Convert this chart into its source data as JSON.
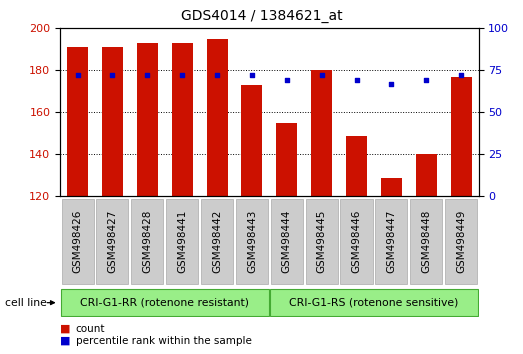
{
  "title": "GDS4014 / 1384621_at",
  "samples": [
    "GSM498426",
    "GSM498427",
    "GSM498428",
    "GSM498441",
    "GSM498442",
    "GSM498443",
    "GSM498444",
    "GSM498445",
    "GSM498446",
    "GSM498447",
    "GSM498448",
    "GSM498449"
  ],
  "count_values": [
    191,
    191,
    193,
    193,
    195,
    173,
    155,
    180,
    149,
    129,
    140,
    177
  ],
  "percentile_values": [
    72,
    72,
    72,
    72,
    72,
    72,
    69,
    72,
    69,
    67,
    69,
    72
  ],
  "ylim_left": [
    120,
    200
  ],
  "ylim_right": [
    0,
    100
  ],
  "yticks_left": [
    120,
    140,
    160,
    180,
    200
  ],
  "yticks_right": [
    0,
    25,
    50,
    75,
    100
  ],
  "bar_color": "#cc1100",
  "dot_color": "#0000cc",
  "bar_bottom": 120,
  "group1_label": "CRI-G1-RR (rotenone resistant)",
  "group2_label": "CRI-G1-RS (rotenone sensitive)",
  "cell_line_label": "cell line",
  "legend_count": "count",
  "legend_percentile": "percentile rank within the sample",
  "group_bg_color": "#99ee88",
  "group_edge_color": "#44aa33",
  "xticklabel_bg": "#cccccc",
  "xticklabel_edge": "#aaaaaa",
  "plot_bg": "#ffffff",
  "grid_color": "#000000",
  "title_fontsize": 10,
  "tick_fontsize": 8,
  "label_fontsize": 7.5
}
